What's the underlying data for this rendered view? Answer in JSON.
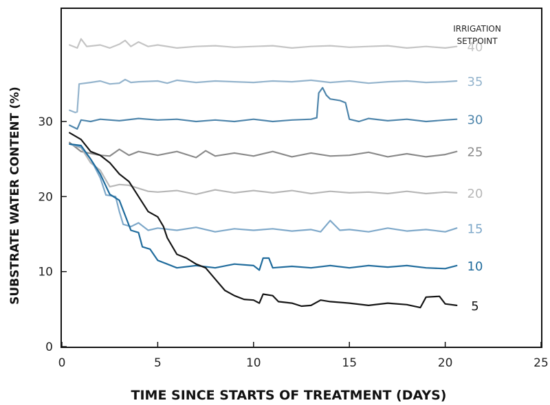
{
  "chart_data": {
    "type": "line",
    "xlabel": "TIME SINCE STARTS OF TREATMENT (DAYS)",
    "ylabel": "SUBSTRATE WATER CONTENT (%)",
    "legend_title": [
      "IRRIGATION",
      "SETPOINT"
    ],
    "xlim": [
      0,
      25
    ],
    "ylim": [
      0,
      45
    ],
    "xticks": [
      "0",
      "5",
      "10",
      "15",
      "20",
      "25"
    ],
    "yticks": [
      "0",
      "10",
      "20",
      "30"
    ],
    "grid": false,
    "legend": "right, labels at line ends",
    "series": [
      {
        "name": "40",
        "color": "#c4c4c4",
        "points": [
          [
            0.4,
            40.2
          ],
          [
            0.8,
            39.8
          ],
          [
            1,
            41
          ],
          [
            1.3,
            40
          ],
          [
            2,
            40.2
          ],
          [
            2.5,
            39.8
          ],
          [
            3,
            40.3
          ],
          [
            3.3,
            40.8
          ],
          [
            3.6,
            40
          ],
          [
            4,
            40.6
          ],
          [
            4.5,
            40
          ],
          [
            5,
            40.2
          ],
          [
            6,
            39.8
          ],
          [
            7,
            40
          ],
          [
            8,
            40.1
          ],
          [
            9,
            39.9
          ],
          [
            10,
            40
          ],
          [
            11,
            40.1
          ],
          [
            12,
            39.8
          ],
          [
            13,
            40
          ],
          [
            14,
            40.1
          ],
          [
            15,
            39.9
          ],
          [
            16,
            40
          ],
          [
            17,
            40.1
          ],
          [
            18,
            39.8
          ],
          [
            19,
            40
          ],
          [
            20,
            39.8
          ],
          [
            20.6,
            40
          ]
        ]
      },
      {
        "name": "35",
        "color": "#93b3cc",
        "points": [
          [
            0.4,
            31.5
          ],
          [
            0.7,
            31.2
          ],
          [
            0.8,
            31.3
          ],
          [
            0.9,
            35
          ],
          [
            1.5,
            35.2
          ],
          [
            2,
            35.4
          ],
          [
            2.5,
            35
          ],
          [
            3,
            35.1
          ],
          [
            3.3,
            35.6
          ],
          [
            3.6,
            35.2
          ],
          [
            4,
            35.3
          ],
          [
            5,
            35.4
          ],
          [
            5.5,
            35.1
          ],
          [
            6,
            35.5
          ],
          [
            7,
            35.2
          ],
          [
            8,
            35.4
          ],
          [
            9,
            35.3
          ],
          [
            10,
            35.2
          ],
          [
            11,
            35.4
          ],
          [
            12,
            35.3
          ],
          [
            13,
            35.5
          ],
          [
            14,
            35.2
          ],
          [
            15,
            35.4
          ],
          [
            16,
            35.1
          ],
          [
            17,
            35.3
          ],
          [
            18,
            35.4
          ],
          [
            19,
            35.2
          ],
          [
            20,
            35.3
          ],
          [
            20.6,
            35.4
          ]
        ]
      },
      {
        "name": "30",
        "color": "#4e85ab",
        "points": [
          [
            0.4,
            29.5
          ],
          [
            0.8,
            29
          ],
          [
            1,
            30.2
          ],
          [
            1.5,
            30
          ],
          [
            2,
            30.3
          ],
          [
            3,
            30.1
          ],
          [
            4,
            30.4
          ],
          [
            5,
            30.2
          ],
          [
            6,
            30.3
          ],
          [
            7,
            30
          ],
          [
            8,
            30.2
          ],
          [
            9,
            30
          ],
          [
            10,
            30.3
          ],
          [
            11,
            30
          ],
          [
            12,
            30.2
          ],
          [
            13,
            30.3
          ],
          [
            13.3,
            30.5
          ],
          [
            13.4,
            33.8
          ],
          [
            13.6,
            34.5
          ],
          [
            13.8,
            33.5
          ],
          [
            14,
            33
          ],
          [
            14.5,
            32.8
          ],
          [
            14.8,
            32.5
          ],
          [
            15,
            30.3
          ],
          [
            15.5,
            30
          ],
          [
            16,
            30.4
          ],
          [
            17,
            30.1
          ],
          [
            18,
            30.3
          ],
          [
            19,
            30
          ],
          [
            20,
            30.2
          ],
          [
            20.6,
            30.3
          ]
        ]
      },
      {
        "name": "25",
        "color": "#8a8a8a",
        "points": [
          [
            0.4,
            27.2
          ],
          [
            1,
            26
          ],
          [
            2,
            25.5
          ],
          [
            2.5,
            25.4
          ],
          [
            3,
            26.3
          ],
          [
            3.5,
            25.5
          ],
          [
            4,
            26
          ],
          [
            5,
            25.5
          ],
          [
            6,
            26
          ],
          [
            7,
            25.2
          ],
          [
            7.5,
            26.1
          ],
          [
            8,
            25.4
          ],
          [
            9,
            25.8
          ],
          [
            10,
            25.4
          ],
          [
            11,
            26
          ],
          [
            12,
            25.3
          ],
          [
            13,
            25.8
          ],
          [
            14,
            25.4
          ],
          [
            15,
            25.5
          ],
          [
            16,
            25.9
          ],
          [
            17,
            25.3
          ],
          [
            18,
            25.7
          ],
          [
            19,
            25.3
          ],
          [
            20,
            25.6
          ],
          [
            20.6,
            26
          ]
        ]
      },
      {
        "name": "20",
        "color": "#b7b7b7",
        "points": [
          [
            0.4,
            27
          ],
          [
            1,
            26.5
          ],
          [
            1.5,
            24.5
          ],
          [
            2,
            23.5
          ],
          [
            2.5,
            21.3
          ],
          [
            3,
            21.6
          ],
          [
            3.5,
            21.5
          ],
          [
            4,
            21.1
          ],
          [
            4.5,
            20.7
          ],
          [
            5,
            20.6
          ],
          [
            6,
            20.8
          ],
          [
            7,
            20.3
          ],
          [
            8,
            20.9
          ],
          [
            9,
            20.5
          ],
          [
            10,
            20.8
          ],
          [
            11,
            20.5
          ],
          [
            12,
            20.8
          ],
          [
            13,
            20.4
          ],
          [
            14,
            20.7
          ],
          [
            15,
            20.5
          ],
          [
            16,
            20.6
          ],
          [
            17,
            20.4
          ],
          [
            18,
            20.7
          ],
          [
            19,
            20.4
          ],
          [
            20,
            20.6
          ],
          [
            20.6,
            20.5
          ]
        ]
      },
      {
        "name": "15",
        "color": "#7ea8c9",
        "points": [
          [
            0.4,
            27
          ],
          [
            1,
            26.6
          ],
          [
            1.5,
            25
          ],
          [
            2,
            22.5
          ],
          [
            2.3,
            20.2
          ],
          [
            2.8,
            20
          ],
          [
            3,
            18
          ],
          [
            3.2,
            16.3
          ],
          [
            3.6,
            16
          ],
          [
            4,
            16.5
          ],
          [
            4.5,
            15.5
          ],
          [
            5,
            15.8
          ],
          [
            6,
            15.5
          ],
          [
            7,
            15.9
          ],
          [
            8,
            15.3
          ],
          [
            9,
            15.7
          ],
          [
            10,
            15.5
          ],
          [
            11,
            15.7
          ],
          [
            12,
            15.4
          ],
          [
            13,
            15.6
          ],
          [
            13.5,
            15.3
          ],
          [
            14,
            16.8
          ],
          [
            14.5,
            15.5
          ],
          [
            15,
            15.6
          ],
          [
            16,
            15.3
          ],
          [
            17,
            15.8
          ],
          [
            18,
            15.4
          ],
          [
            19,
            15.6
          ],
          [
            20,
            15.3
          ],
          [
            20.6,
            15.8
          ]
        ]
      },
      {
        "name": "10",
        "color": "#1f6b9c",
        "points": [
          [
            0.4,
            27
          ],
          [
            1,
            26.8
          ],
          [
            1.5,
            25
          ],
          [
            2,
            23
          ],
          [
            2.5,
            20.3
          ],
          [
            3,
            19.5
          ],
          [
            3.3,
            17.5
          ],
          [
            3.6,
            15.5
          ],
          [
            4,
            15.2
          ],
          [
            4.2,
            13.3
          ],
          [
            4.6,
            13
          ],
          [
            5,
            11.5
          ],
          [
            5.5,
            11
          ],
          [
            6,
            10.5
          ],
          [
            7,
            10.8
          ],
          [
            8,
            10.5
          ],
          [
            9,
            11
          ],
          [
            10,
            10.8
          ],
          [
            10.3,
            10.2
          ],
          [
            10.5,
            11.8
          ],
          [
            10.8,
            11.8
          ],
          [
            11,
            10.5
          ],
          [
            12,
            10.7
          ],
          [
            13,
            10.5
          ],
          [
            14,
            10.8
          ],
          [
            15,
            10.5
          ],
          [
            16,
            10.8
          ],
          [
            17,
            10.6
          ],
          [
            18,
            10.8
          ],
          [
            19,
            10.5
          ],
          [
            20,
            10.4
          ],
          [
            20.6,
            10.8
          ]
        ]
      },
      {
        "name": "5",
        "color": "#151515",
        "points": [
          [
            0.4,
            28.5
          ],
          [
            1,
            27.6
          ],
          [
            1.5,
            26
          ],
          [
            2,
            25.5
          ],
          [
            2.5,
            24.5
          ],
          [
            3,
            23
          ],
          [
            3.5,
            22
          ],
          [
            4,
            20
          ],
          [
            4.5,
            18
          ],
          [
            5,
            17.3
          ],
          [
            5.3,
            16
          ],
          [
            5.5,
            14.5
          ],
          [
            6,
            12.3
          ],
          [
            6.5,
            11.8
          ],
          [
            7,
            11
          ],
          [
            7.5,
            10.5
          ],
          [
            8,
            9
          ],
          [
            8.5,
            7.5
          ],
          [
            9,
            6.8
          ],
          [
            9.5,
            6.3
          ],
          [
            10,
            6.2
          ],
          [
            10.3,
            5.8
          ],
          [
            10.5,
            7
          ],
          [
            11,
            6.8
          ],
          [
            11.3,
            6
          ],
          [
            12,
            5.8
          ],
          [
            12.5,
            5.4
          ],
          [
            13,
            5.5
          ],
          [
            13.5,
            6.2
          ],
          [
            14,
            6
          ],
          [
            15,
            5.8
          ],
          [
            16,
            5.5
          ],
          [
            17,
            5.8
          ],
          [
            18,
            5.6
          ],
          [
            18.7,
            5.2
          ],
          [
            19,
            6.6
          ],
          [
            19.7,
            6.7
          ],
          [
            20,
            5.7
          ],
          [
            20.6,
            5.5
          ]
        ]
      }
    ]
  }
}
